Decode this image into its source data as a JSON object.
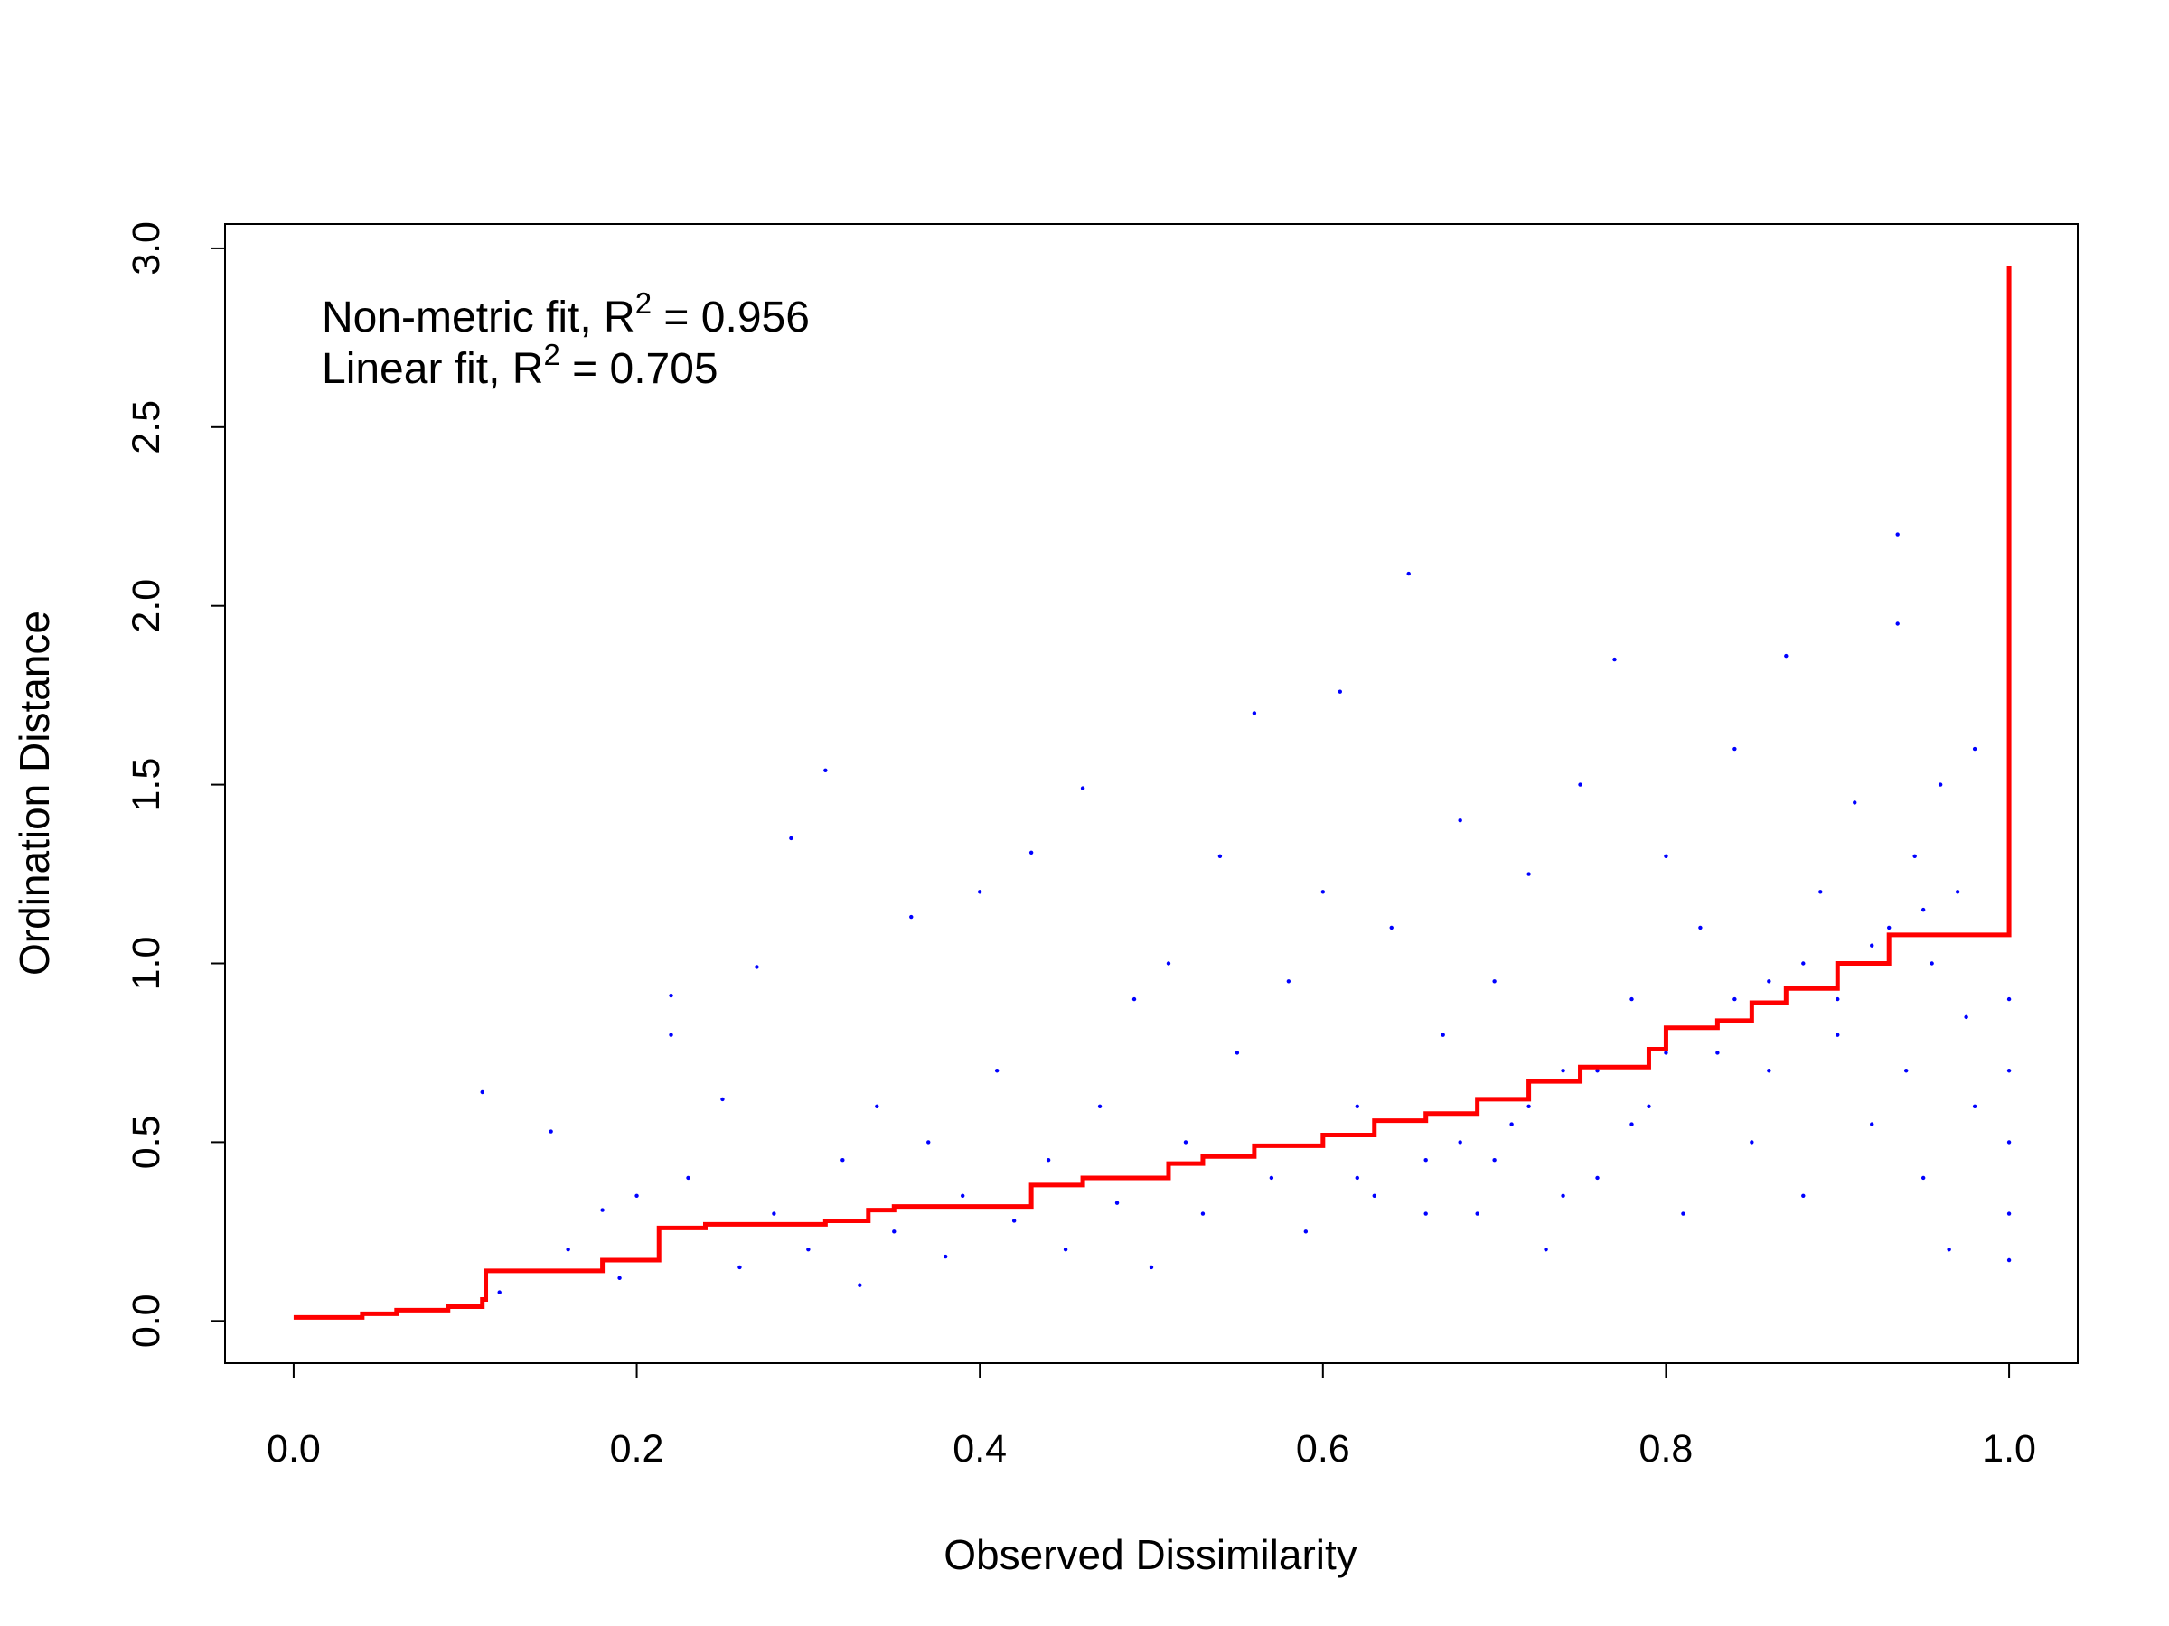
{
  "chart_data": {
    "type": "scatter",
    "xlabel": "Observed Dissimilarity",
    "ylabel": "Ordination Distance",
    "xlim": [
      -0.04,
      1.04
    ],
    "ylim": [
      -0.118,
      3.068
    ],
    "xticks": [
      {
        "value": 0.0,
        "label": "0.0"
      },
      0.2,
      0.4,
      0.6,
      0.8,
      {
        "value": 1.0,
        "label": "1.0"
      }
    ],
    "yticks": [
      {
        "value": 0.0,
        "label": "0.0"
      },
      0.5,
      {
        "value": 1.0,
        "label": "1.0"
      },
      1.5,
      {
        "value": 2.0,
        "label": "2.0"
      },
      2.5,
      {
        "value": 3.0,
        "label": "3.0"
      }
    ],
    "annotations": [
      {
        "text": "Non-metric fit, R",
        "superscript": "2",
        "rest": " = 0.956"
      },
      {
        "text": "Linear fit, R",
        "superscript": "2",
        "rest": " = 0.705"
      }
    ],
    "series": [
      {
        "name": "Observed",
        "color": "#0000ff",
        "x": [
          0.11,
          0.15,
          0.12,
          0.16,
          0.18,
          0.19,
          0.2,
          0.22,
          0.22,
          0.23,
          0.25,
          0.26,
          0.27,
          0.28,
          0.29,
          0.3,
          0.31,
          0.32,
          0.33,
          0.34,
          0.35,
          0.36,
          0.37,
          0.38,
          0.39,
          0.4,
          0.41,
          0.42,
          0.43,
          0.44,
          0.45,
          0.46,
          0.47,
          0.48,
          0.49,
          0.5,
          0.51,
          0.52,
          0.53,
          0.54,
          0.55,
          0.56,
          0.57,
          0.58,
          0.59,
          0.6,
          0.61,
          0.62,
          0.63,
          0.64,
          0.65,
          0.66,
          0.67,
          0.68,
          0.69,
          0.7,
          0.71,
          0.72,
          0.73,
          0.74,
          0.75,
          0.76,
          0.77,
          0.78,
          0.79,
          0.8,
          0.81,
          0.82,
          0.83,
          0.84,
          0.85,
          0.86,
          0.87,
          0.88,
          0.89,
          0.9,
          0.91,
          0.92,
          0.93,
          0.935,
          0.935,
          0.94,
          0.945,
          0.95,
          0.955,
          0.96,
          0.965,
          0.97,
          0.975,
          0.98,
          0.98,
          1.0,
          1.0,
          1.0,
          1.0,
          1.0,
          0.62,
          0.68,
          0.72,
          0.76,
          0.8,
          0.84,
          0.88,
          0.92,
          0.95,
          0.7,
          0.78,
          0.86,
          0.9,
          0.66,
          0.74
        ],
        "values": [
          0.64,
          0.53,
          0.08,
          0.2,
          0.31,
          0.12,
          0.35,
          0.91,
          0.8,
          0.4,
          0.62,
          0.15,
          0.99,
          0.3,
          1.35,
          0.2,
          1.54,
          0.45,
          0.1,
          0.6,
          0.25,
          1.13,
          0.5,
          0.18,
          0.35,
          1.2,
          0.7,
          0.28,
          1.31,
          0.45,
          0.2,
          1.49,
          0.6,
          0.33,
          0.9,
          0.15,
          1.0,
          0.5,
          0.3,
          1.3,
          0.75,
          1.7,
          0.4,
          0.95,
          0.25,
          1.2,
          1.76,
          0.6,
          0.35,
          1.1,
          2.09,
          0.45,
          0.8,
          1.4,
          0.3,
          0.95,
          0.55,
          1.25,
          0.2,
          0.7,
          1.5,
          0.4,
          1.85,
          0.9,
          0.6,
          1.3,
          0.3,
          1.1,
          0.75,
          1.6,
          0.5,
          0.95,
          1.86,
          0.35,
          1.2,
          0.8,
          1.45,
          0.55,
          1.1,
          2.2,
          1.95,
          0.7,
          1.3,
          0.4,
          1.0,
          1.5,
          0.2,
          1.2,
          0.85,
          1.6,
          0.6,
          0.17,
          0.3,
          0.5,
          0.7,
          0.9,
          0.4,
          0.5,
          0.6,
          0.7,
          0.75,
          0.9,
          1.0,
          1.05,
          1.15,
          0.45,
          0.55,
          0.7,
          0.9,
          0.3,
          0.35
        ]
      },
      {
        "name": "Fit",
        "color": "#ff0000",
        "step": "hv",
        "x": [
          0.0,
          0.04,
          0.06,
          0.09,
          0.11,
          0.112,
          0.18,
          0.213,
          0.24,
          0.31,
          0.335,
          0.35,
          0.43,
          0.46,
          0.51,
          0.53,
          0.56,
          0.6,
          0.63,
          0.66,
          0.69,
          0.72,
          0.75,
          0.79,
          0.8,
          0.83,
          0.85,
          0.87,
          0.9,
          0.93,
          1.0
        ],
        "values": [
          0.01,
          0.02,
          0.03,
          0.04,
          0.06,
          0.14,
          0.17,
          0.26,
          0.27,
          0.28,
          0.31,
          0.32,
          0.38,
          0.4,
          0.44,
          0.46,
          0.49,
          0.52,
          0.56,
          0.58,
          0.62,
          0.67,
          0.71,
          0.76,
          0.82,
          0.84,
          0.89,
          0.93,
          1.0,
          1.08,
          2.95
        ]
      }
    ]
  }
}
